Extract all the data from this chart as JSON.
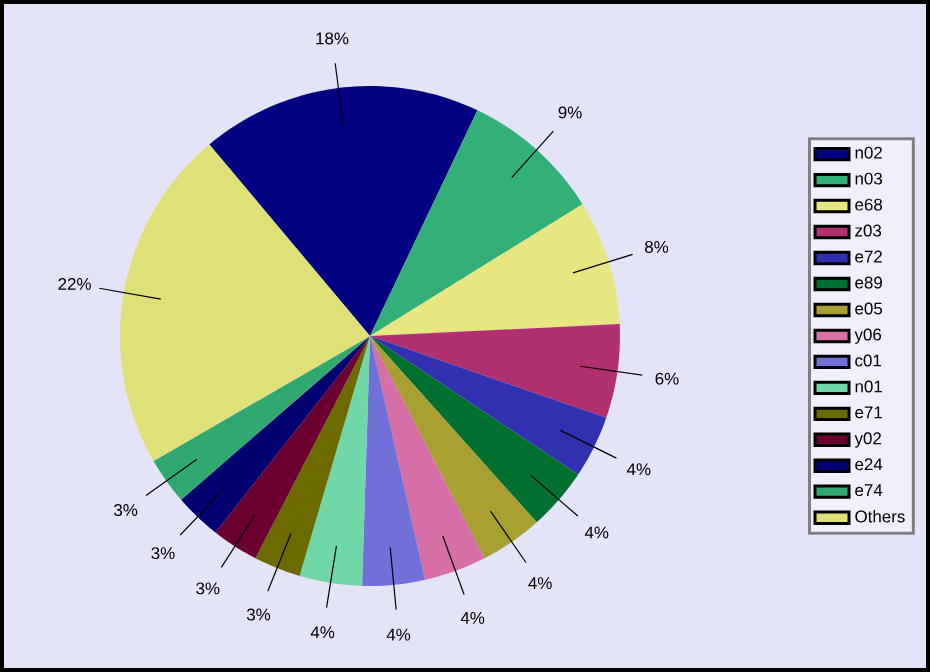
{
  "chart_data": {
    "type": "pie",
    "categories": [
      "n02",
      "n03",
      "e68",
      "z03",
      "e72",
      "e89",
      "e05",
      "y06",
      "c01",
      "n01",
      "e71",
      "y02",
      "e24",
      "e74",
      "Others"
    ],
    "values": [
      18,
      9,
      8,
      6,
      4,
      4,
      4,
      4,
      4,
      4,
      3,
      3,
      3,
      3,
      22
    ],
    "value_labels": [
      "18%",
      "9%",
      "8%",
      "6%",
      "4%",
      "4%",
      "4%",
      "4%",
      "4%",
      "4%",
      "3%",
      "3%",
      "3%",
      "3%",
      "22%"
    ],
    "colors": [
      "#000080",
      "#33b077",
      "#e8e680",
      "#b03070",
      "#3030b0",
      "#007030",
      "#a8a030",
      "#d870a8",
      "#7070d8",
      "#70d8a8",
      "#6b6b00",
      "#6b0030",
      "#000070",
      "#30a870",
      "#e0e078"
    ],
    "legend": "right"
  }
}
